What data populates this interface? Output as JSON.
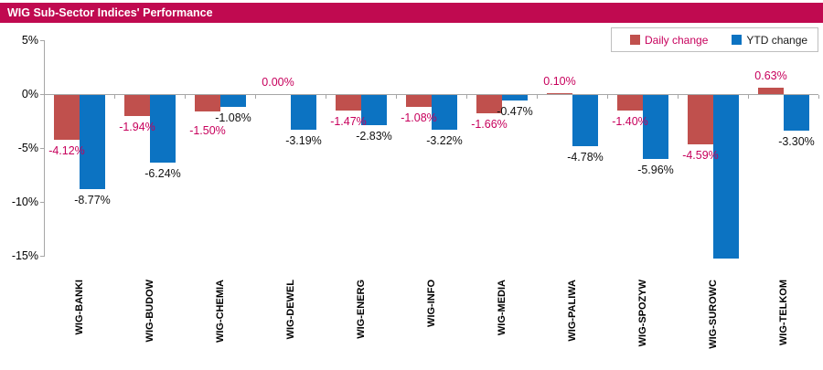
{
  "header": {
    "title": "WIG Sub-Sector Indices' Performance"
  },
  "legend": {
    "items": [
      {
        "label": "Daily change",
        "color": "#C0504D",
        "label_color": "#C7005C"
      },
      {
        "label": "YTD change",
        "color": "#0C73C2",
        "label_color": "#1A1A1A"
      }
    ]
  },
  "colors": {
    "title_bar": "#C00A50",
    "title_text": "#FFFFFF",
    "daily_value_label": "#C7005C",
    "ytd_value_label": "#111111",
    "axis": "#A6A6A6",
    "background": "#FFFFFF"
  },
  "chart_data": {
    "type": "bar",
    "title": "WIG Sub-Sector Indices' Performance",
    "categories": [
      "WIG-BANKI",
      "WIG-BUDOW",
      "WIG-CHEMIA",
      "WIG-DEWEL",
      "WIG-ENERG",
      "WIG-INFO",
      "WIG-MEDIA",
      "WIG-PALIWA",
      "WIG-SPOZYW",
      "WIG-SUROWC",
      "WIG-TELKOM"
    ],
    "series": [
      {
        "name": "Daily change",
        "color": "#C0504D",
        "values": [
          -4.12,
          -1.94,
          -1.5,
          0.0,
          -1.47,
          -1.08,
          -1.66,
          0.1,
          -1.4,
          -4.59,
          0.63
        ],
        "labels": [
          "-4.12%",
          "-1.94%",
          "-1.50%",
          "0.00%",
          "-1.47%",
          "-1.08%",
          "-1.66%",
          "0.10%",
          "-1.40%",
          "-4.59%",
          "0.63%"
        ]
      },
      {
        "name": "YTD change",
        "color": "#0C73C2",
        "values": [
          -8.77,
          -6.24,
          -1.08,
          -3.19,
          -2.83,
          -3.22,
          -0.47,
          -4.78,
          -5.96,
          -15.2,
          -3.3
        ],
        "labels": [
          "-8.77%",
          "-6.24%",
          "-1.08%",
          "-3.19%",
          "-2.83%",
          "-3.22%",
          "-0.47%",
          "-4.78%",
          "-5.96%",
          "",
          "-3.30%"
        ]
      }
    ],
    "xlabel": "",
    "ylabel": "",
    "yticks": [
      5,
      0,
      -5,
      -10,
      -15
    ],
    "ytick_labels": [
      "5%",
      "0%",
      "-5%",
      "-10%",
      "-15%"
    ],
    "ylim": [
      -15.2,
      5
    ],
    "grid": false,
    "legend_position": "top-right",
    "note": "WIG-SUROWC YTD bar is clipped at the bottom of the plot (about -15.2%) and carries no data label"
  }
}
